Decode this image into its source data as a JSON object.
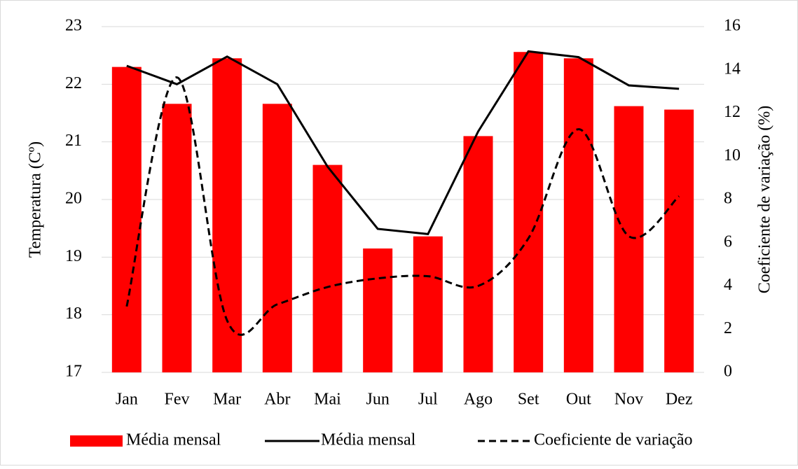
{
  "chart_data": {
    "type": "bar_line",
    "categories": [
      "Jan",
      "Fev",
      "Mar",
      "Abr",
      "Mai",
      "Jun",
      "Jul",
      "Ago",
      "Set",
      "Out",
      "Nov",
      "Dez"
    ],
    "ylabel": "Temperatura (Cº)",
    "y2label": "Coeficiente  de variação (%)",
    "ylim": [
      17,
      23
    ],
    "yticks": [
      17,
      18,
      19,
      20,
      21,
      22,
      23
    ],
    "y2lim": [
      0,
      16
    ],
    "y2ticks": [
      0,
      2,
      4,
      6,
      8,
      10,
      12,
      14,
      16
    ],
    "grid": true,
    "legend": "bottom",
    "series": [
      {
        "name": "Média mensal",
        "kind": "bar",
        "color": "#ff0000",
        "values": [
          22.3,
          21.66,
          22.45,
          21.66,
          20.6,
          19.15,
          19.36,
          21.1,
          22.56,
          22.45,
          21.62,
          21.56
        ]
      },
      {
        "name": "Média mensal",
        "kind": "line",
        "color": "#000000",
        "values": [
          22.32,
          22.0,
          22.48,
          22.0,
          20.57,
          19.49,
          19.4,
          21.18,
          22.57,
          22.47,
          21.98,
          21.92
        ]
      },
      {
        "name": "Coeficiente de variação",
        "kind": "dashed",
        "color": "#000000",
        "axis": "y2",
        "values": [
          3.05,
          13.65,
          2.4,
          3.15,
          3.95,
          4.35,
          4.45,
          4.0,
          6.2,
          11.25,
          6.3,
          8.15
        ]
      }
    ]
  }
}
